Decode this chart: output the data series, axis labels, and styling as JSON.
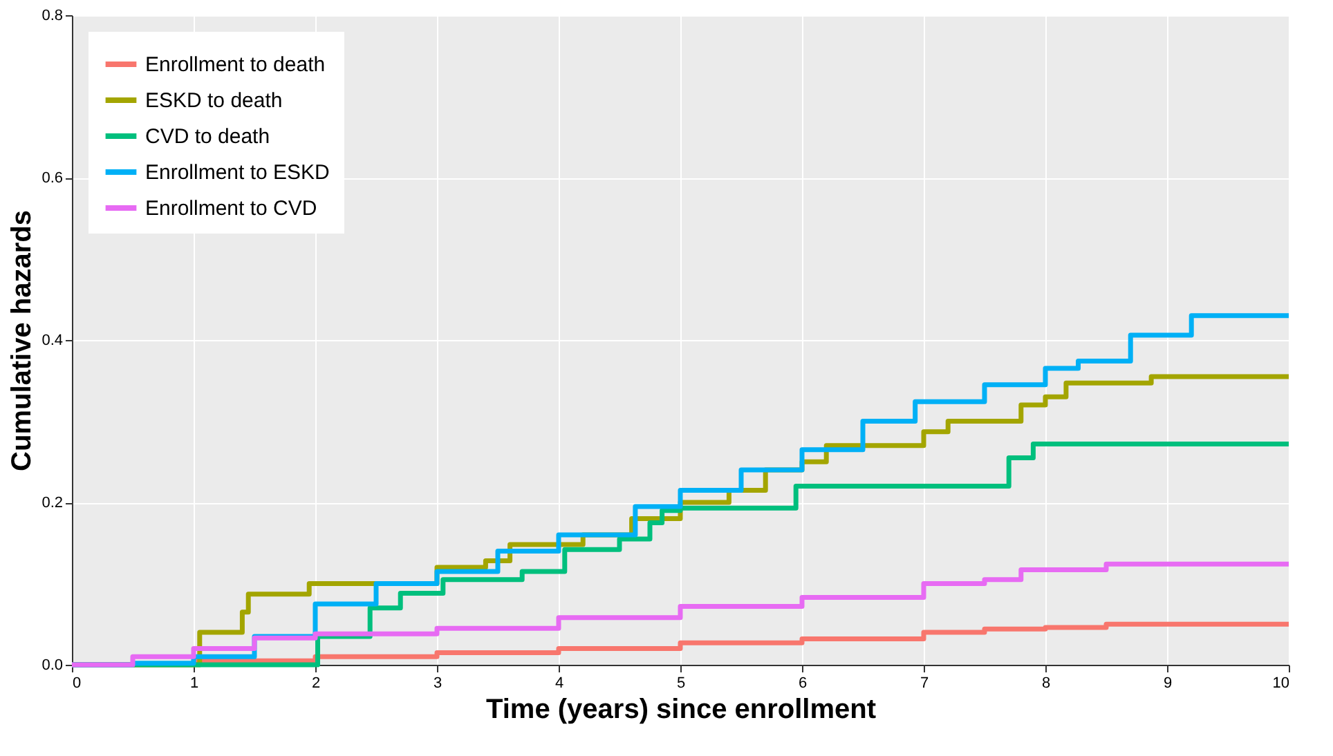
{
  "chart_data": {
    "type": "step",
    "xlabel": "Time (years) since enrollment",
    "ylabel": "Cumulative hazards",
    "xlim": [
      0,
      10
    ],
    "xticks": [
      0,
      1,
      2,
      3,
      4,
      5,
      6,
      7,
      8,
      9,
      10
    ],
    "ylim": [
      0,
      0.8
    ],
    "yticks": [
      {
        "value": 0,
        "label": "0.0"
      },
      0.2,
      0.4,
      0.6,
      0.8
    ],
    "grid": true,
    "legend": "top left",
    "line_style": "solid",
    "marker": "none",
    "series": [
      {
        "name": "Enrollment to death",
        "color": "#f8766d",
        "x": [
          0,
          1,
          2,
          3,
          4,
          5,
          6,
          7,
          7.5,
          8,
          8.5,
          10
        ],
        "values": [
          0,
          0.005,
          0.01,
          0.015,
          0.02,
          0.027,
          0.032,
          0.04,
          0.044,
          0.046,
          0.05,
          0.05
        ]
      },
      {
        "name": "ESKD to death",
        "color": "#a3a500",
        "x": [
          0,
          1.05,
          1.4,
          1.45,
          1.95,
          3.0,
          3.4,
          3.6,
          4.2,
          4.6,
          5.0,
          5.4,
          5.7,
          6.0,
          6.2,
          7.0,
          7.2,
          7.8,
          8.0,
          8.17,
          8.87,
          10
        ],
        "values": [
          0,
          0.04,
          0.065,
          0.087,
          0.1,
          0.12,
          0.128,
          0.148,
          0.16,
          0.18,
          0.2,
          0.215,
          0.24,
          0.25,
          0.27,
          0.287,
          0.3,
          0.32,
          0.33,
          0.347,
          0.355,
          0.355
        ]
      },
      {
        "name": "CVD to death",
        "color": "#00bf7d",
        "x": [
          0,
          2.02,
          2.45,
          2.7,
          3.05,
          3.7,
          4.05,
          4.5,
          4.75,
          4.85,
          5.0,
          5.95,
          7.7,
          7.9,
          10
        ],
        "values": [
          0,
          0.035,
          0.07,
          0.088,
          0.105,
          0.115,
          0.142,
          0.155,
          0.175,
          0.19,
          0.193,
          0.22,
          0.255,
          0.272,
          0.272
        ]
      },
      {
        "name": "Enrollment to ESKD",
        "color": "#00b0f6",
        "x": [
          0,
          0.5,
          1,
          1.5,
          2,
          2.5,
          3,
          3.5,
          4,
          4.63,
          5,
          5.5,
          6,
          6.5,
          6.93,
          7.5,
          8,
          8.27,
          8.7,
          9.2,
          10
        ],
        "values": [
          0,
          0.002,
          0.01,
          0.035,
          0.075,
          0.1,
          0.115,
          0.14,
          0.16,
          0.195,
          0.215,
          0.24,
          0.265,
          0.3,
          0.324,
          0.345,
          0.365,
          0.374,
          0.406,
          0.43,
          0.43
        ]
      },
      {
        "name": "Enrollment to CVD",
        "color": "#e76bf3",
        "x": [
          0,
          0.5,
          1,
          1.5,
          2,
          3,
          4,
          5,
          6,
          7,
          7.5,
          7.8,
          8.5,
          10
        ],
        "values": [
          0,
          0.01,
          0.02,
          0.033,
          0.038,
          0.045,
          0.058,
          0.072,
          0.083,
          0.1,
          0.105,
          0.117,
          0.124,
          0.124
        ]
      }
    ]
  }
}
